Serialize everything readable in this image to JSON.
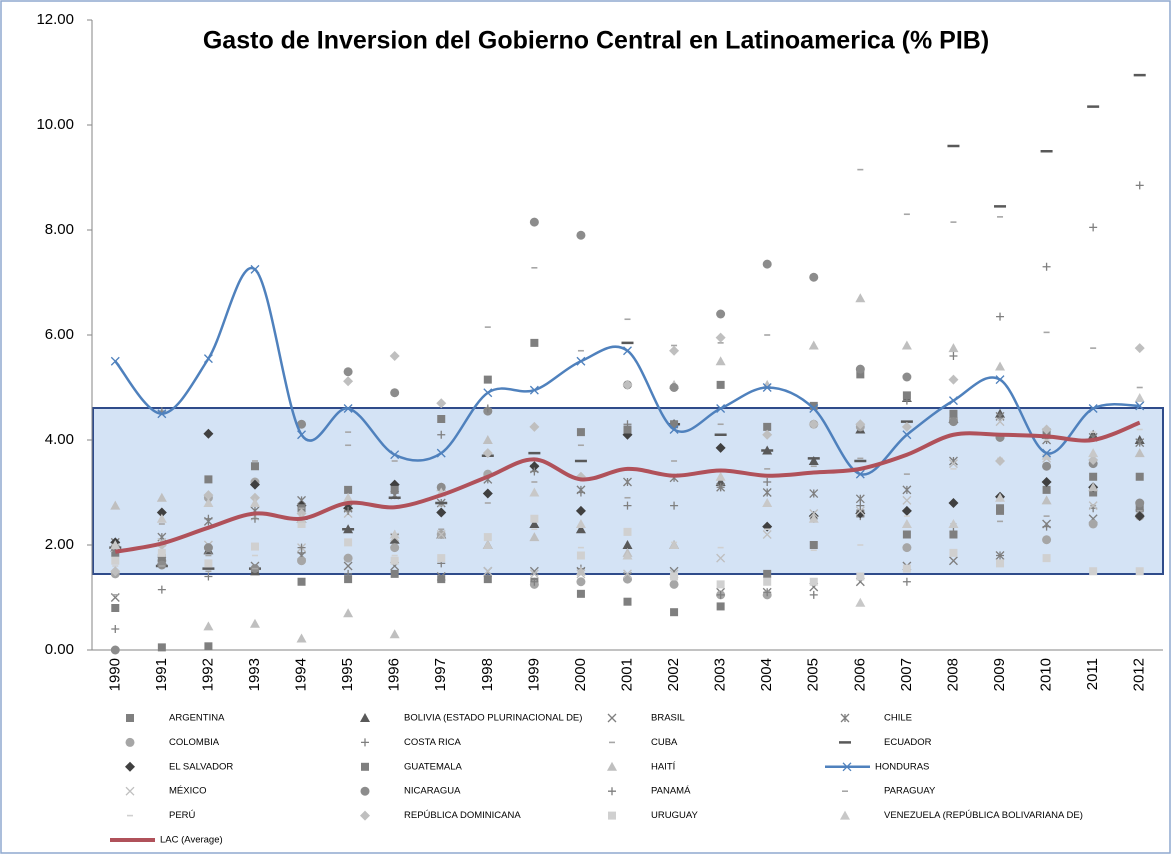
{
  "chart_data": {
    "type": "line",
    "title": "Gasto de Inversion del Gobierno Central en Latinoamerica (% PIB)",
    "categories": [
      "1990",
      "1991",
      "1992",
      "1993",
      "1994",
      "1995",
      "1996",
      "1997",
      "1998",
      "1999",
      "2000",
      "2001",
      "2002",
      "2003",
      "2004",
      "2005",
      "2006",
      "2007",
      "2008",
      "2009",
      "2010",
      "2011",
      "2012"
    ],
    "ylim": [
      0,
      12
    ],
    "yticks": [
      {
        "value": 0,
        "label": "0.00"
      },
      {
        "value": 2,
        "label": "2.00"
      },
      {
        "value": 4,
        "label": "4.00"
      },
      {
        "value": 6,
        "label": "6.00"
      },
      {
        "value": 8,
        "label": "8.00"
      },
      {
        "value": 10,
        "label": "10.00"
      },
      {
        "value": 12,
        "label": "12.00"
      }
    ],
    "legend": "bottom",
    "series": [
      {
        "name": "ARGENTINA",
        "color": "#7f7f7f",
        "marker": "square",
        "values": [
          0.8,
          0.05,
          0.07,
          1.5,
          1.3,
          1.35,
          1.45,
          1.35,
          1.35,
          1.3,
          1.07,
          0.92,
          0.72,
          0.83,
          1.45,
          2.0,
          2.6,
          2.2,
          2.2,
          2.65,
          3.05,
          3.0,
          2.7
        ]
      },
      {
        "name": "BOLIVIA (ESTADO PLURINACIONAL DE)",
        "color": "#595959",
        "marker": "triangle",
        "values": [
          1.95,
          1.7,
          1.9,
          1.5,
          2.5,
          2.3,
          2.1,
          2.2,
          2.0,
          2.4,
          2.3,
          2.0,
          2.0,
          3.2,
          3.8,
          3.6,
          4.2,
          4.8,
          4.4,
          4.5,
          4.1,
          4.1,
          4.0
        ]
      },
      {
        "name": "BRASIL",
        "color": "#7f7f7f",
        "marker": "x",
        "values": [
          1.0,
          1.7,
          1.9,
          1.6,
          1.8,
          1.6,
          1.6,
          1.4,
          1.5,
          1.5,
          1.5,
          1.4,
          1.5,
          1.1,
          1.1,
          1.2,
          1.3,
          1.6,
          1.7,
          1.8,
          2.4,
          2.5,
          2.6
        ]
      },
      {
        "name": "CHILE",
        "color": "#7f7f7f",
        "marker": "asterisk",
        "values": [
          2.05,
          2.15,
          2.45,
          2.65,
          2.85,
          2.7,
          2.95,
          2.8,
          3.25,
          3.45,
          3.05,
          3.2,
          3.28,
          3.1,
          3.0,
          2.98,
          2.88,
          3.05,
          3.6,
          4.45,
          4.0,
          4.05,
          3.95
        ]
      },
      {
        "name": "COLOMBIA",
        "color": "#a6a6a6",
        "marker": "circle",
        "values": [
          1.45,
          1.7,
          2.9,
          3.2,
          1.7,
          1.75,
          1.95,
          2.2,
          3.35,
          1.25,
          1.3,
          1.35,
          1.25,
          1.05,
          1.05,
          4.3,
          4.25,
          1.95,
          4.4,
          4.05,
          2.1,
          2.4,
          2.55
        ]
      },
      {
        "name": "COSTA RICA",
        "color": "#7f7f7f",
        "marker": "plus",
        "values": [
          0.4,
          1.15,
          1.4,
          1.55,
          1.85,
          1.45,
          2.2,
          1.65,
          1.4,
          1.3,
          1.55,
          2.75,
          2.75,
          1.05,
          1.1,
          1.05,
          2.55,
          1.3,
          2.25,
          1.8,
          2.35,
          2.7,
          2.55
        ]
      },
      {
        "name": "CUBA",
        "color": "#a6a6a6",
        "marker": "dash",
        "values": [
          1.05,
          2.4,
          1.8,
          3.6,
          2.4,
          3.9,
          2.9,
          2.3,
          2.8,
          3.2,
          3.9,
          2.9,
          3.6,
          4.3,
          3.45,
          3.5,
          3.65,
          3.35,
          2.4,
          2.45,
          2.55,
          2.75,
          2.65
        ]
      },
      {
        "name": "ECUADOR",
        "color": "#595959",
        "marker": "longdash",
        "values": [
          1.95,
          1.6,
          1.55,
          1.55,
          2.5,
          2.3,
          2.9,
          2.8,
          3.7,
          3.75,
          3.6,
          5.85,
          4.3,
          4.1,
          3.8,
          3.65,
          3.6,
          4.35,
          9.6,
          8.45,
          9.5,
          10.35,
          10.95
        ]
      },
      {
        "name": "EL SALVADOR",
        "color": "#404040",
        "marker": "diamond",
        "values": [
          2.05,
          2.62,
          4.12,
          3.15,
          2.75,
          2.7,
          3.15,
          2.62,
          2.98,
          3.5,
          2.65,
          4.1,
          4.3,
          3.85,
          2.35,
          2.55,
          2.6,
          2.65,
          2.8,
          2.92,
          3.2,
          3.1,
          2.55
        ]
      },
      {
        "name": "GUATEMALA",
        "color": "#7f7f7f",
        "marker": "square",
        "values": [
          1.85,
          1.75,
          3.25,
          3.5,
          2.7,
          3.05,
          3.05,
          4.4,
          5.15,
          5.85,
          4.15,
          4.2,
          4.3,
          5.05,
          4.25,
          4.65,
          5.25,
          4.85,
          4.5,
          2.7,
          4.15,
          3.3,
          3.3
        ]
      },
      {
        "name": "HAITÍ",
        "color": "#bfbfbf",
        "marker": "triangle",
        "values": [
          2.75,
          2.9,
          0.45,
          0.5,
          0.22,
          0.7,
          0.3,
          3.1,
          4.0,
          2.15,
          1.5,
          1.85,
          5.05,
          5.5,
          5.05,
          5.8,
          6.7,
          5.8,
          5.75,
          5.4,
          2.85,
          3.1,
          3.75
        ]
      },
      {
        "name": "HONDURAS",
        "color": "#4f81bd",
        "marker": "x",
        "line": true,
        "values": [
          5.5,
          4.5,
          5.55,
          7.25,
          4.1,
          4.6,
          3.72,
          3.75,
          4.9,
          4.95,
          5.5,
          5.7,
          4.2,
          4.6,
          5.0,
          4.6,
          3.35,
          4.1,
          4.75,
          5.15,
          3.75,
          4.6,
          4.65
        ]
      },
      {
        "name": "MÉXICO",
        "color": "#bfbfbf",
        "marker": "x",
        "values": [
          1.95,
          2.05,
          2.0,
          2.55,
          1.95,
          2.6,
          2.15,
          2.2,
          1.5,
          1.45,
          1.45,
          1.45,
          1.45,
          1.75,
          2.2,
          2.6,
          2.65,
          2.85,
          3.55,
          4.35,
          3.65,
          2.75,
          4.65
        ]
      },
      {
        "name": "NICARAGUA",
        "color": "#8c8c8c",
        "marker": "circle",
        "values": [
          0.0,
          1.62,
          1.95,
          1.55,
          4.3,
          5.3,
          4.9,
          3.1,
          4.55,
          8.15,
          7.9,
          5.05,
          5.0,
          6.4,
          7.35,
          7.1,
          5.35,
          5.2,
          4.35,
          4.05,
          3.5,
          3.55,
          2.8
        ]
      },
      {
        "name": "PANAMÁ",
        "color": "#7f7f7f",
        "marker": "plus",
        "values": [
          1.9,
          4.55,
          2.5,
          2.5,
          1.95,
          2.65,
          2.2,
          4.1,
          4.6,
          3.4,
          3.0,
          4.3,
          4.3,
          3.1,
          3.2,
          2.5,
          2.75,
          4.75,
          5.6,
          6.35,
          7.3,
          8.05,
          8.85
        ]
      },
      {
        "name": "PARAGUAY",
        "color": "#a6a6a6",
        "marker": "dash",
        "values": [
          1.4,
          1.6,
          1.5,
          1.55,
          2.7,
          4.15,
          3.6,
          2.75,
          6.15,
          7.28,
          5.7,
          6.3,
          5.8,
          5.85,
          6.0,
          4.25,
          9.15,
          8.3,
          8.15,
          8.25,
          6.05,
          5.75,
          5.0
        ]
      },
      {
        "name": "PERÚ",
        "color": "#d0d0d0",
        "marker": "dash",
        "values": [
          1.6,
          1.8,
          1.7,
          1.8,
          2.4,
          2.0,
          1.8,
          1.7,
          2.1,
          2.3,
          1.95,
          2.3,
          2.05,
          1.95,
          2.3,
          1.9,
          2.0,
          2.55,
          3.45,
          3.65,
          4.0,
          4.15,
          4.2
        ]
      },
      {
        "name": "REPÚBLICA DOMINICANA",
        "color": "#bfbfbf",
        "marker": "diamond",
        "values": [
          1.5,
          2.0,
          2.95,
          2.9,
          2.6,
          5.12,
          5.6,
          4.7,
          3.75,
          4.25,
          3.3,
          5.05,
          5.7,
          5.95,
          4.1,
          4.3,
          4.3,
          4.25,
          5.15,
          3.6,
          4.2,
          3.62,
          5.75
        ]
      },
      {
        "name": "URUGUAY",
        "color": "#d0d0d0",
        "marker": "square",
        "values": [
          1.7,
          1.85,
          1.65,
          1.97,
          2.4,
          2.05,
          1.7,
          1.75,
          2.15,
          2.5,
          1.8,
          2.25,
          1.4,
          1.25,
          1.3,
          1.3,
          1.4,
          1.55,
          1.85,
          1.65,
          1.75,
          1.5,
          1.5
        ]
      },
      {
        "name": "VENEZUELA (REPÚBLICA BOLIVARIANA DE)",
        "color": "#c8c8c8",
        "marker": "triangle",
        "values": [
          2.0,
          2.5,
          2.8,
          2.8,
          2.5,
          2.9,
          2.2,
          3.0,
          2.0,
          3.0,
          2.4,
          1.8,
          2.0,
          3.3,
          2.8,
          2.5,
          0.9,
          2.4,
          2.4,
          2.9,
          3.7,
          3.75,
          4.8
        ]
      },
      {
        "name": "LAC (Average)",
        "color": "#b0515a",
        "marker": "none",
        "line": true,
        "width": 4,
        "values": [
          1.87,
          2.03,
          2.33,
          2.6,
          2.5,
          2.8,
          2.72,
          2.95,
          3.3,
          3.63,
          3.25,
          3.45,
          3.32,
          3.42,
          3.32,
          3.38,
          3.45,
          3.72,
          4.1,
          4.1,
          4.07,
          4.0,
          4.33
        ]
      }
    ]
  }
}
